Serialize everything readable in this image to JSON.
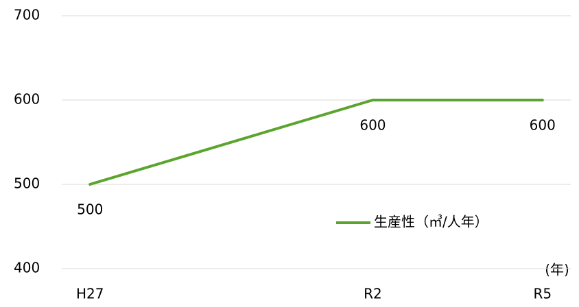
{
  "chart_data": {
    "type": "line",
    "x": [
      2015,
      2020,
      2023
    ],
    "xticks": [
      {
        "value": 2015,
        "label": "H27"
      },
      {
        "value": 2020,
        "label": "R2"
      },
      {
        "value": 2023,
        "label": "R5"
      }
    ],
    "xlim": [
      2014.5,
      2023.5
    ],
    "xlabel": "(年)",
    "series": [
      {
        "name": "生産性（㎥/人年）",
        "color": "#5ba52e",
        "values": [
          500,
          600,
          600
        ]
      }
    ],
    "ylim": [
      400,
      700
    ],
    "yticks": [
      400,
      500,
      600,
      700
    ],
    "grid": true
  }
}
